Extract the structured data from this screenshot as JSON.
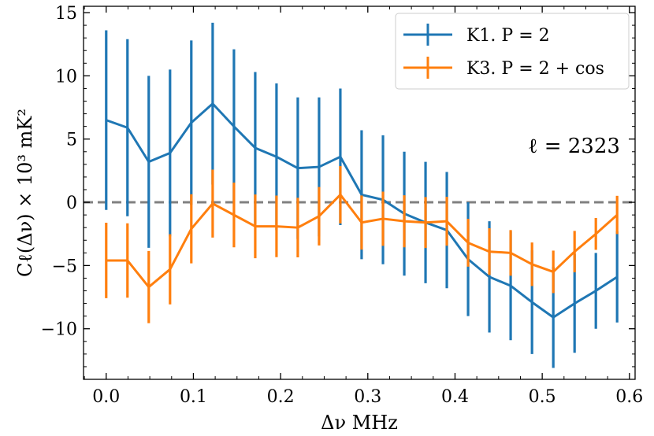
{
  "chart_data": {
    "type": "line",
    "xlabel": "Δν MHz",
    "ylabel": "Cℓ(Δν) × 10³ mK²",
    "xlim": [
      -0.026,
      0.6065
    ],
    "ylim": [
      -14.0,
      15.5
    ],
    "xticks": [
      0.0,
      0.1,
      0.2,
      0.3,
      0.4,
      0.5,
      0.6
    ],
    "xtick_labels": [
      "0.0",
      "0.1",
      "0.2",
      "0.3",
      "0.4",
      "0.5",
      "0.6"
    ],
    "yticks": [
      -10,
      -5,
      0,
      5,
      10,
      15
    ],
    "ytick_labels": [
      "−10",
      "−5",
      "0",
      "5",
      "10",
      "15"
    ],
    "reference_line": {
      "y": 0,
      "style": "dashed",
      "color": "#808080"
    },
    "annotation": "ℓ = 2323",
    "legend_position": "top-right",
    "x": [
      0.0,
      0.0244,
      0.0488,
      0.0732,
      0.0976,
      0.1221,
      0.1465,
      0.1709,
      0.1953,
      0.2197,
      0.2441,
      0.2685,
      0.2929,
      0.3174,
      0.3418,
      0.3662,
      0.3906,
      0.415,
      0.4394,
      0.4638,
      0.4883,
      0.5127,
      0.5371,
      0.5615,
      0.5859
    ],
    "series": [
      {
        "name": "K1. P = 2",
        "color": "#1f77b4",
        "values": [
          6.5,
          5.9,
          3.2,
          3.9,
          6.3,
          7.8,
          6.0,
          4.3,
          3.6,
          2.7,
          2.8,
          3.6,
          0.6,
          0.2,
          -0.9,
          -1.6,
          -2.2,
          -4.5,
          -5.9,
          -6.6,
          -7.9,
          -9.1,
          -8.0,
          -7.0,
          -5.9
        ],
        "errors": [
          7.1,
          7.0,
          6.8,
          6.6,
          6.5,
          6.4,
          6.1,
          6.0,
          5.8,
          5.6,
          5.5,
          5.4,
          5.1,
          5.1,
          4.9,
          4.8,
          4.6,
          4.5,
          4.4,
          4.3,
          4.1,
          4.0,
          3.9,
          3.0,
          3.6
        ]
      },
      {
        "name": "K3. P = 2 + cos",
        "color": "#ff7f0e",
        "values": [
          -4.6,
          -4.6,
          -6.7,
          -5.3,
          -2.1,
          -0.1,
          -1.0,
          -1.9,
          -1.9,
          -2.0,
          -1.1,
          0.6,
          -1.6,
          -1.3,
          -1.5,
          -1.6,
          -1.5,
          -3.2,
          -3.9,
          -4.0,
          -4.9,
          -5.5,
          -3.9,
          -2.5,
          -1.0
        ]
      }
    ]
  }
}
